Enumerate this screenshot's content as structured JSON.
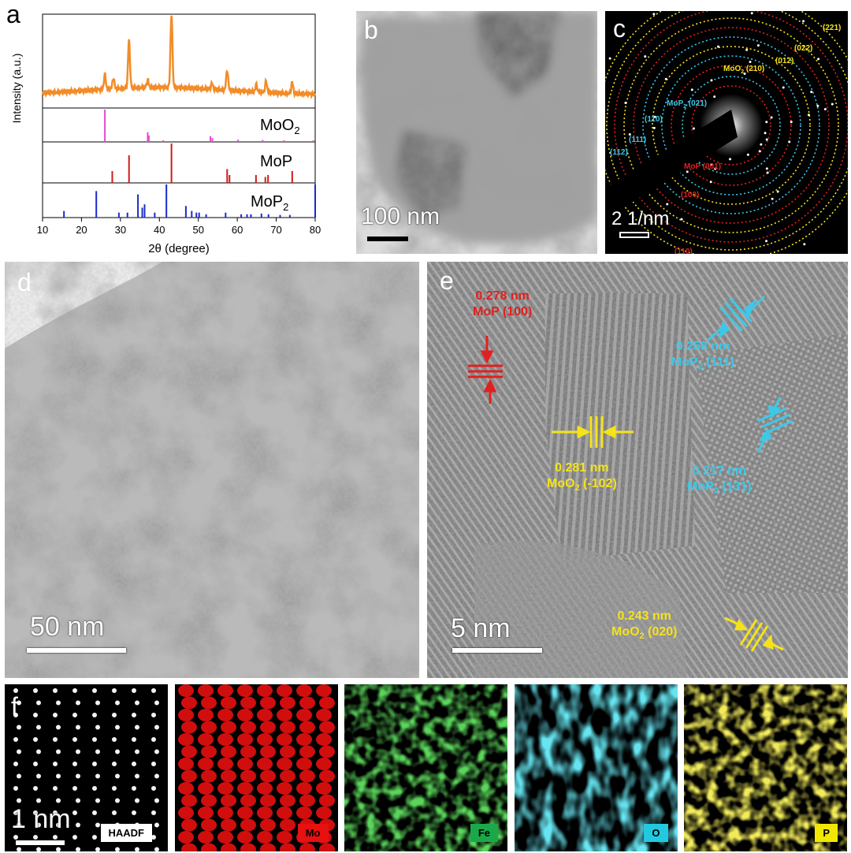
{
  "labels": {
    "a": "a",
    "b": "b",
    "c": "c",
    "d": "d",
    "e": "e",
    "f": "f"
  },
  "panel_a": {
    "ylabel": "Intensity (a.u.)",
    "xlabel": "2θ (degree)",
    "xticks": [
      "10",
      "20",
      "30",
      "40",
      "50",
      "60",
      "70",
      "80"
    ],
    "ref_labels": [
      {
        "base": "MoO",
        "sub": "2"
      },
      {
        "base": "MoP",
        "sub": ""
      },
      {
        "base": "MoP",
        "sub": "2"
      }
    ],
    "colors": {
      "sample": "#f28c28",
      "moo2": "#e64ad6",
      "mop": "#d11a1a",
      "mop2": "#1a2bcc"
    }
  },
  "chart_data": {
    "type": "line",
    "xlabel": "2θ (degree)",
    "ylabel": "Intensity (a.u.)",
    "xlim": [
      10,
      80
    ],
    "sample_peaks": [
      {
        "x": 26.0,
        "h": 0.2
      },
      {
        "x": 28.2,
        "h": 0.15
      },
      {
        "x": 32.2,
        "h": 0.65
      },
      {
        "x": 37.0,
        "h": 0.1
      },
      {
        "x": 43.1,
        "h": 1.0
      },
      {
        "x": 53.5,
        "h": 0.08
      },
      {
        "x": 57.4,
        "h": 0.28
      },
      {
        "x": 64.9,
        "h": 0.1
      },
      {
        "x": 67.4,
        "h": 0.15
      },
      {
        "x": 74.1,
        "h": 0.15
      }
    ],
    "references": [
      {
        "name": "MoO2",
        "lines": [
          [
            26.0,
            1.0
          ],
          [
            37.0,
            0.3
          ],
          [
            37.3,
            0.2
          ],
          [
            41.0,
            0.05
          ],
          [
            53.1,
            0.18
          ],
          [
            53.6,
            0.12
          ],
          [
            60.2,
            0.07
          ],
          [
            66.5,
            0.06
          ],
          [
            72.0,
            0.05
          ],
          [
            79.5,
            0.05
          ]
        ]
      },
      {
        "name": "MoP",
        "lines": [
          [
            27.9,
            0.3
          ],
          [
            32.2,
            0.7
          ],
          [
            43.1,
            1.0
          ],
          [
            57.4,
            0.35
          ],
          [
            58.0,
            0.2
          ],
          [
            64.8,
            0.2
          ],
          [
            67.2,
            0.15
          ],
          [
            67.9,
            0.2
          ],
          [
            74.1,
            0.3
          ]
        ]
      },
      {
        "name": "MoP2",
        "lines": [
          [
            15.5,
            0.2
          ],
          [
            23.8,
            0.8
          ],
          [
            29.6,
            0.15
          ],
          [
            31.8,
            0.15
          ],
          [
            34.5,
            0.7
          ],
          [
            35.6,
            0.3
          ],
          [
            36.2,
            0.4
          ],
          [
            38.8,
            0.15
          ],
          [
            41.8,
            1.0
          ],
          [
            46.8,
            0.35
          ],
          [
            48.3,
            0.2
          ],
          [
            49.5,
            0.15
          ],
          [
            50.2,
            0.15
          ],
          [
            52.0,
            0.1
          ],
          [
            57.0,
            0.15
          ],
          [
            61.0,
            0.1
          ],
          [
            62.5,
            0.1
          ],
          [
            63.5,
            0.1
          ],
          [
            66.2,
            0.12
          ],
          [
            68.0,
            0.1
          ],
          [
            71.0,
            0.08
          ],
          [
            73.5,
            0.08
          ],
          [
            80.0,
            1.0
          ]
        ]
      }
    ]
  },
  "panel_b": {
    "scale_text": "100 nm"
  },
  "panel_c": {
    "scale_text": "2 1/nm",
    "rings": [
      {
        "text": "(221)",
        "color": "#f5e31a"
      },
      {
        "text": "(022)",
        "color": "#f5e31a"
      },
      {
        "text": "(012)",
        "color": "#f5e31a"
      },
      {
        "text": "MoO",
        "sub": "2",
        "tail": " (210)",
        "color": "#f5e31a"
      },
      {
        "text": "MoP",
        "sub": "2",
        "tail": " (021)",
        "color": "#3ec8e8"
      },
      {
        "text": "(110)",
        "color": "#3ec8e8"
      },
      {
        "text": "(111)",
        "color": "#3ec8e8"
      },
      {
        "text": "(112)",
        "color": "#3ec8e8"
      },
      {
        "text": "MoP (001)",
        "color": "#e02020"
      },
      {
        "text": "(100)",
        "color": "#e02020"
      },
      {
        "text": "(110)",
        "color": "#e02020"
      }
    ]
  },
  "panel_d": {
    "scale_text": "50 nm"
  },
  "panel_e": {
    "scale_text": "5 nm",
    "annotations": [
      {
        "line1": "0.278 nm",
        "line2": "MoP (100)",
        "sub": "",
        "tail": "",
        "color": "#e02020"
      },
      {
        "line1": "0.258 nm",
        "line2": "MoP",
        "sub": "2",
        "tail": " (111)",
        "color": "#3ec8e8"
      },
      {
        "line1": "0.281 nm",
        "line2": "MoO",
        "sub": "2",
        "tail": " (-102)",
        "color": "#f5e31a"
      },
      {
        "line1": "0.217 nm",
        "line2": "MoP",
        "sub": "2",
        "tail": " (131)",
        "color": "#3ec8e8"
      },
      {
        "line1": "0.243 nm",
        "line2": "MoO",
        "sub": "2",
        "tail": " (020)",
        "color": "#f5e31a"
      }
    ]
  },
  "panel_f": {
    "scale_text": "1 nm",
    "maps": [
      {
        "tag": "HAADF",
        "color": "#ffffff",
        "tag_bg": "#ffffff",
        "tag_fg": "#000000"
      },
      {
        "tag": "Mo",
        "color": "#e81010",
        "tag_bg": "#e81010",
        "tag_fg": "#000000"
      },
      {
        "tag": "Fe",
        "color": "#1aa81a",
        "tag_bg": "#1aa84a",
        "tag_fg": "#000000"
      },
      {
        "tag": "O",
        "color": "#22c8e0",
        "tag_bg": "#22c8e0",
        "tag_fg": "#000000"
      },
      {
        "tag": "P",
        "color": "#e0d21a",
        "tag_bg": "#f0e800",
        "tag_fg": "#000000"
      }
    ]
  }
}
